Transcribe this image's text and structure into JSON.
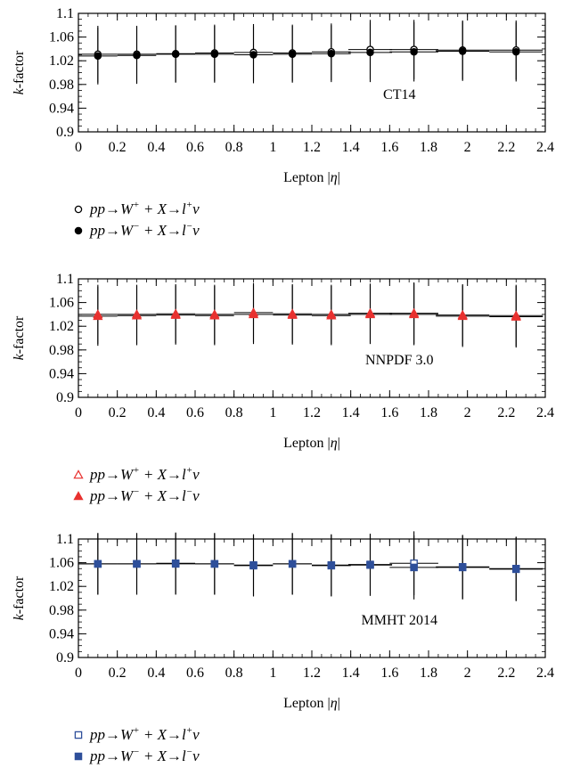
{
  "chart_data": [
    {
      "type": "scatter",
      "annotation": "CT14",
      "xlabel": "Lepton |η|",
      "ylabel": "k-factor",
      "xlim": [
        0,
        2.4
      ],
      "ylim": [
        0.9,
        1.1
      ],
      "x_ticks": [
        "0",
        "0.2",
        "0.4",
        "0.6",
        "0.8",
        "1",
        "1.2",
        "1.4",
        "1.6",
        "1.8",
        "2",
        "2.2",
        "2.4"
      ],
      "y_ticks": [
        "0.9",
        "0.94",
        "0.98",
        "1.02",
        "1.06",
        "1.1"
      ],
      "marker_style": "circle",
      "color": "#000000",
      "x": [
        0.1,
        0.3,
        0.5,
        0.7,
        0.9,
        1.1,
        1.3,
        1.5,
        1.725,
        1.975,
        2.25
      ],
      "series": [
        {
          "name": "pp→W⁺ + X→l⁺ν",
          "fill": "open",
          "values": [
            1.031,
            1.031,
            1.032,
            1.033,
            1.034,
            1.033,
            1.035,
            1.039,
            1.039,
            1.038,
            1.038
          ],
          "err": [
            0.048,
            0.048,
            0.048,
            0.048,
            0.048,
            0.048,
            0.048,
            0.05,
            0.05,
            0.05,
            0.05
          ]
        },
        {
          "name": "pp→W⁻ + X→l⁻ν",
          "fill": "filled",
          "values": [
            1.028,
            1.029,
            1.031,
            1.031,
            1.03,
            1.031,
            1.032,
            1.034,
            1.035,
            1.036,
            1.035
          ],
          "err": [
            0.048,
            0.048,
            0.048,
            0.048,
            0.048,
            0.048,
            0.048,
            0.05,
            0.05,
            0.05,
            0.05
          ]
        }
      ],
      "legend": [
        "pp→W⁺ + X→l⁺ν",
        "pp→W⁻ + X→l⁻ν"
      ]
    },
    {
      "type": "scatter",
      "annotation": "NNPDF 3.0",
      "xlabel": "Lepton |η|",
      "ylabel": "k-factor",
      "xlim": [
        0,
        2.4
      ],
      "ylim": [
        0.9,
        1.1
      ],
      "x_ticks": [
        "0",
        "0.2",
        "0.4",
        "0.6",
        "0.8",
        "1",
        "1.2",
        "1.4",
        "1.6",
        "1.8",
        "2",
        "2.2",
        "2.4"
      ],
      "y_ticks": [
        "0.9",
        "0.94",
        "0.98",
        "1.02",
        "1.06",
        "1.1"
      ],
      "marker_style": "triangle",
      "color": "#e8312f",
      "x": [
        0.1,
        0.3,
        0.5,
        0.7,
        0.9,
        1.1,
        1.3,
        1.5,
        1.725,
        1.975,
        2.25
      ],
      "series": [
        {
          "name": "pp→W⁺ + X→l⁺ν",
          "fill": "open",
          "values": [
            1.04,
            1.04,
            1.041,
            1.04,
            1.043,
            1.041,
            1.04,
            1.042,
            1.042,
            1.039,
            1.038
          ],
          "err": [
            0.05,
            0.05,
            0.05,
            0.05,
            0.05,
            0.05,
            0.05,
            0.05,
            0.052,
            0.052,
            0.052
          ]
        },
        {
          "name": "pp→W⁻ + X→l⁻ν",
          "fill": "filled",
          "values": [
            1.037,
            1.038,
            1.039,
            1.038,
            1.04,
            1.039,
            1.038,
            1.04,
            1.04,
            1.037,
            1.036
          ],
          "err": [
            0.05,
            0.05,
            0.05,
            0.05,
            0.05,
            0.05,
            0.05,
            0.05,
            0.052,
            0.052,
            0.052
          ]
        }
      ],
      "legend": [
        "pp→W⁺ + X→l⁺ν",
        "pp→W⁻ + X→l⁻ν"
      ]
    },
    {
      "type": "scatter",
      "annotation": "MMHT 2014",
      "xlabel": "Lepton |η|",
      "ylabel": "k-factor",
      "xlim": [
        0,
        2.4
      ],
      "ylim": [
        0.9,
        1.1
      ],
      "x_ticks": [
        "0",
        "0.2",
        "0.4",
        "0.6",
        "0.8",
        "1",
        "1.2",
        "1.4",
        "1.6",
        "1.8",
        "2",
        "2.2",
        "2.4"
      ],
      "y_ticks": [
        "0.9",
        "0.94",
        "0.98",
        "1.02",
        "1.06",
        "1.1"
      ],
      "marker_style": "square",
      "color": "#2e4f9a",
      "x": [
        0.1,
        0.3,
        0.5,
        0.7,
        0.9,
        1.1,
        1.3,
        1.5,
        1.725,
        1.975,
        2.25
      ],
      "series": [
        {
          "name": "pp→W⁺ + X→l⁺ν",
          "fill": "open",
          "values": [
            1.058,
            1.058,
            1.058,
            1.058,
            1.056,
            1.058,
            1.056,
            1.057,
            1.059,
            1.053,
            1.05
          ],
          "err": [
            0.052,
            0.052,
            0.052,
            0.052,
            0.052,
            0.052,
            0.052,
            0.052,
            0.054,
            0.054,
            0.054
          ]
        },
        {
          "name": "pp→W⁻ + X→l⁻ν",
          "fill": "filled",
          "values": [
            1.058,
            1.058,
            1.059,
            1.058,
            1.055,
            1.058,
            1.055,
            1.056,
            1.052,
            1.052,
            1.049
          ],
          "err": [
            0.052,
            0.052,
            0.052,
            0.052,
            0.052,
            0.052,
            0.052,
            0.052,
            0.054,
            0.054,
            0.054
          ]
        }
      ],
      "legend": [
        "pp→W⁺ + X→l⁺ν",
        "pp→W⁻ + X→l⁻ν"
      ]
    }
  ]
}
